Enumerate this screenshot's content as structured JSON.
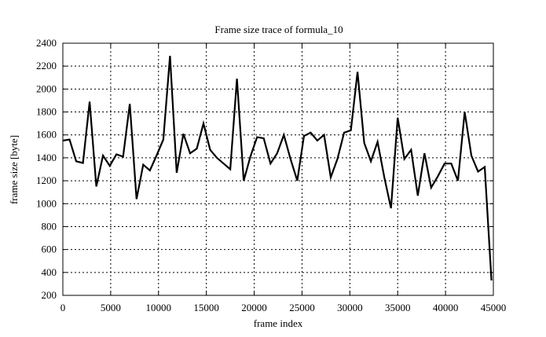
{
  "chart_data": {
    "type": "line",
    "title": "Frame size trace of formula_10",
    "xlabel": "frame index",
    "ylabel": "frame size [byte]",
    "xlim": [
      0,
      45000
    ],
    "ylim": [
      200,
      2400
    ],
    "xticks": [
      0,
      5000,
      10000,
      15000,
      20000,
      25000,
      30000,
      35000,
      40000,
      45000
    ],
    "yticks": [
      200,
      400,
      600,
      800,
      1000,
      1200,
      1400,
      1600,
      1800,
      2000,
      2200,
      2400
    ],
    "grid": true,
    "line_color": "#000000",
    "x_step": 700,
    "values": [
      1550,
      1560,
      1370,
      1355,
      1890,
      1150,
      1420,
      1330,
      1430,
      1410,
      1870,
      1040,
      1340,
      1290,
      1420,
      1560,
      2290,
      1270,
      1610,
      1440,
      1480,
      1700,
      1470,
      1400,
      1350,
      1300,
      2090,
      1200,
      1410,
      1580,
      1570,
      1350,
      1440,
      1600,
      1390,
      1200,
      1590,
      1620,
      1550,
      1600,
      1230,
      1390,
      1620,
      1640,
      2150,
      1530,
      1370,
      1540,
      1230,
      960,
      1750,
      1390,
      1470,
      1070,
      1440,
      1140,
      1240,
      1350,
      1350,
      1200,
      1800,
      1420,
      1280,
      1320,
      330
    ]
  }
}
